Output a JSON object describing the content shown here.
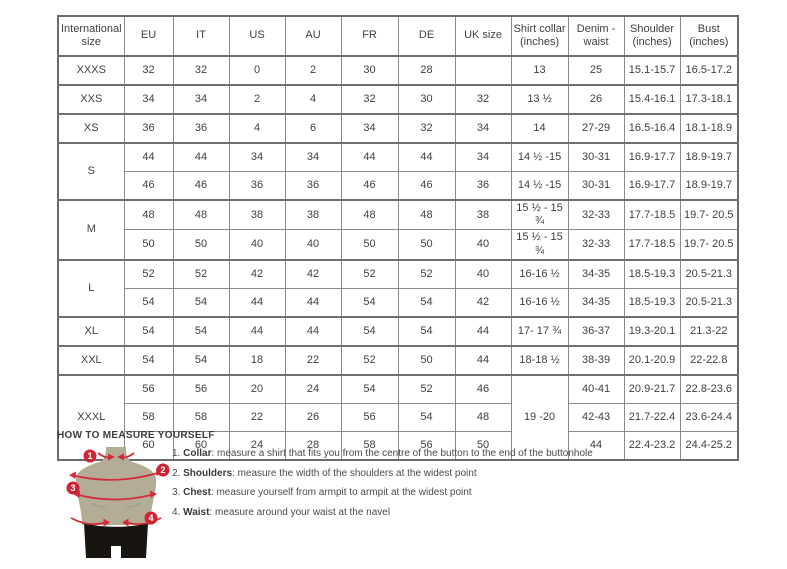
{
  "colors": {
    "accent_red": "#d22b3a",
    "badge_red": "#cf2435",
    "mannequin_tan": "#b2ad94",
    "shorts_black": "#18140f",
    "table_border": "#8a8a8a"
  },
  "table": {
    "headers": [
      "International size",
      "EU",
      "IT",
      "US",
      "AU",
      "FR",
      "DE",
      "UK size",
      "Shirt collar (inches)",
      "Denim - waist",
      "Shoulder (inches)",
      "Bust (inches)"
    ],
    "rows": [
      {
        "group": true,
        "cells": [
          "XXXS",
          "32",
          "32",
          "0",
          "2",
          "30",
          "28",
          "",
          "13",
          "25",
          "15.1-15.7",
          "16.5-17.2"
        ]
      },
      {
        "group": true,
        "cells": [
          "XXS",
          "34",
          "34",
          "2",
          "4",
          "32",
          "30",
          "32",
          "13 ½",
          "26",
          "15.4-16.1",
          "17.3-18.1"
        ]
      },
      {
        "group": true,
        "cells": [
          "XS",
          "36",
          "36",
          "4",
          "6",
          "34",
          "32",
          "34",
          "14",
          "27-29",
          "16.5-16.4",
          "18.1-18.9"
        ]
      },
      {
        "group": true,
        "cells": [
          {
            "v": "S",
            "rs": 2
          },
          "44",
          "44",
          "34",
          "34",
          "44",
          "44",
          "34",
          "14 ½ -15",
          "30-31",
          "16.9-17.7",
          "18.9-19.7"
        ]
      },
      {
        "group": false,
        "cells": [
          "46",
          "46",
          "36",
          "36",
          "46",
          "46",
          "36",
          "14 ½ -15",
          "30-31",
          "16.9-17.7",
          "18.9-19.7"
        ]
      },
      {
        "group": true,
        "cells": [
          {
            "v": "M",
            "rs": 2
          },
          "48",
          "48",
          "38",
          "38",
          "48",
          "48",
          "38",
          "15 ½ - 15 ¾",
          "32-33",
          "17.7-18.5",
          "19.7- 20.5"
        ]
      },
      {
        "group": false,
        "cells": [
          "50",
          "50",
          "40",
          "40",
          "50",
          "50",
          "40",
          "15 ½ - 15 ¾",
          "32-33",
          "17.7-18.5",
          "19.7- 20.5"
        ]
      },
      {
        "group": true,
        "cells": [
          {
            "v": "L",
            "rs": 2
          },
          "52",
          "52",
          "42",
          "42",
          "52",
          "52",
          "40",
          "16-16 ½",
          "34-35",
          "18.5-19.3",
          "20.5-21.3"
        ]
      },
      {
        "group": false,
        "cells": [
          "54",
          "54",
          "44",
          "44",
          "54",
          "54",
          "42",
          "16-16 ½",
          "34-35",
          "18.5-19.3",
          "20.5-21.3"
        ]
      },
      {
        "group": true,
        "cells": [
          "XL",
          "54",
          "54",
          "44",
          "44",
          "54",
          "54",
          "44",
          "17- 17 ¾",
          "36-37",
          "19.3-20.1",
          "21.3-22"
        ]
      },
      {
        "group": true,
        "cells": [
          "XXL",
          "54",
          "54",
          "18",
          "22",
          "52",
          "50",
          "44",
          "18-18 ½",
          "38-39",
          "20.1-20.9",
          "22-22.8"
        ]
      },
      {
        "group": true,
        "cells": [
          {
            "v": "XXXL",
            "rs": 3
          },
          "56",
          "56",
          "20",
          "24",
          "54",
          "52",
          "46",
          {
            "v": "19 -20",
            "rs": 3
          },
          "40-41",
          "20.9-21.7",
          "22.8-23.6"
        ]
      },
      {
        "group": false,
        "cells": [
          "58",
          "58",
          "22",
          "26",
          "56",
          "54",
          "48",
          "42-43",
          "21.7-22.4",
          "23.6-24.4"
        ]
      },
      {
        "group": false,
        "cells": [
          "60",
          "60",
          "24",
          "28",
          "58",
          "56",
          "50",
          "44",
          "22.4-23.2",
          "24.4-25.2"
        ]
      }
    ]
  },
  "measure": {
    "title": "HOW TO MEASURE YOURSELF",
    "steps": [
      {
        "num": "1.",
        "label": "Collar",
        "rest": ": measure a shirt that fits you from the centre of the button to the end of the buttonhole"
      },
      {
        "num": "2.",
        "label": "Shoulders",
        "rest": ": measure the width of the shoulders at the widest point"
      },
      {
        "num": "3.",
        "label": "Chest",
        "rest": ": measure yourself from armpit to armpit at the widest point"
      },
      {
        "num": "4.",
        "label": "Waist",
        "rest": ": measure around your waist at the navel"
      }
    ],
    "figure_badges": [
      "1",
      "2",
      "3",
      "4"
    ]
  }
}
